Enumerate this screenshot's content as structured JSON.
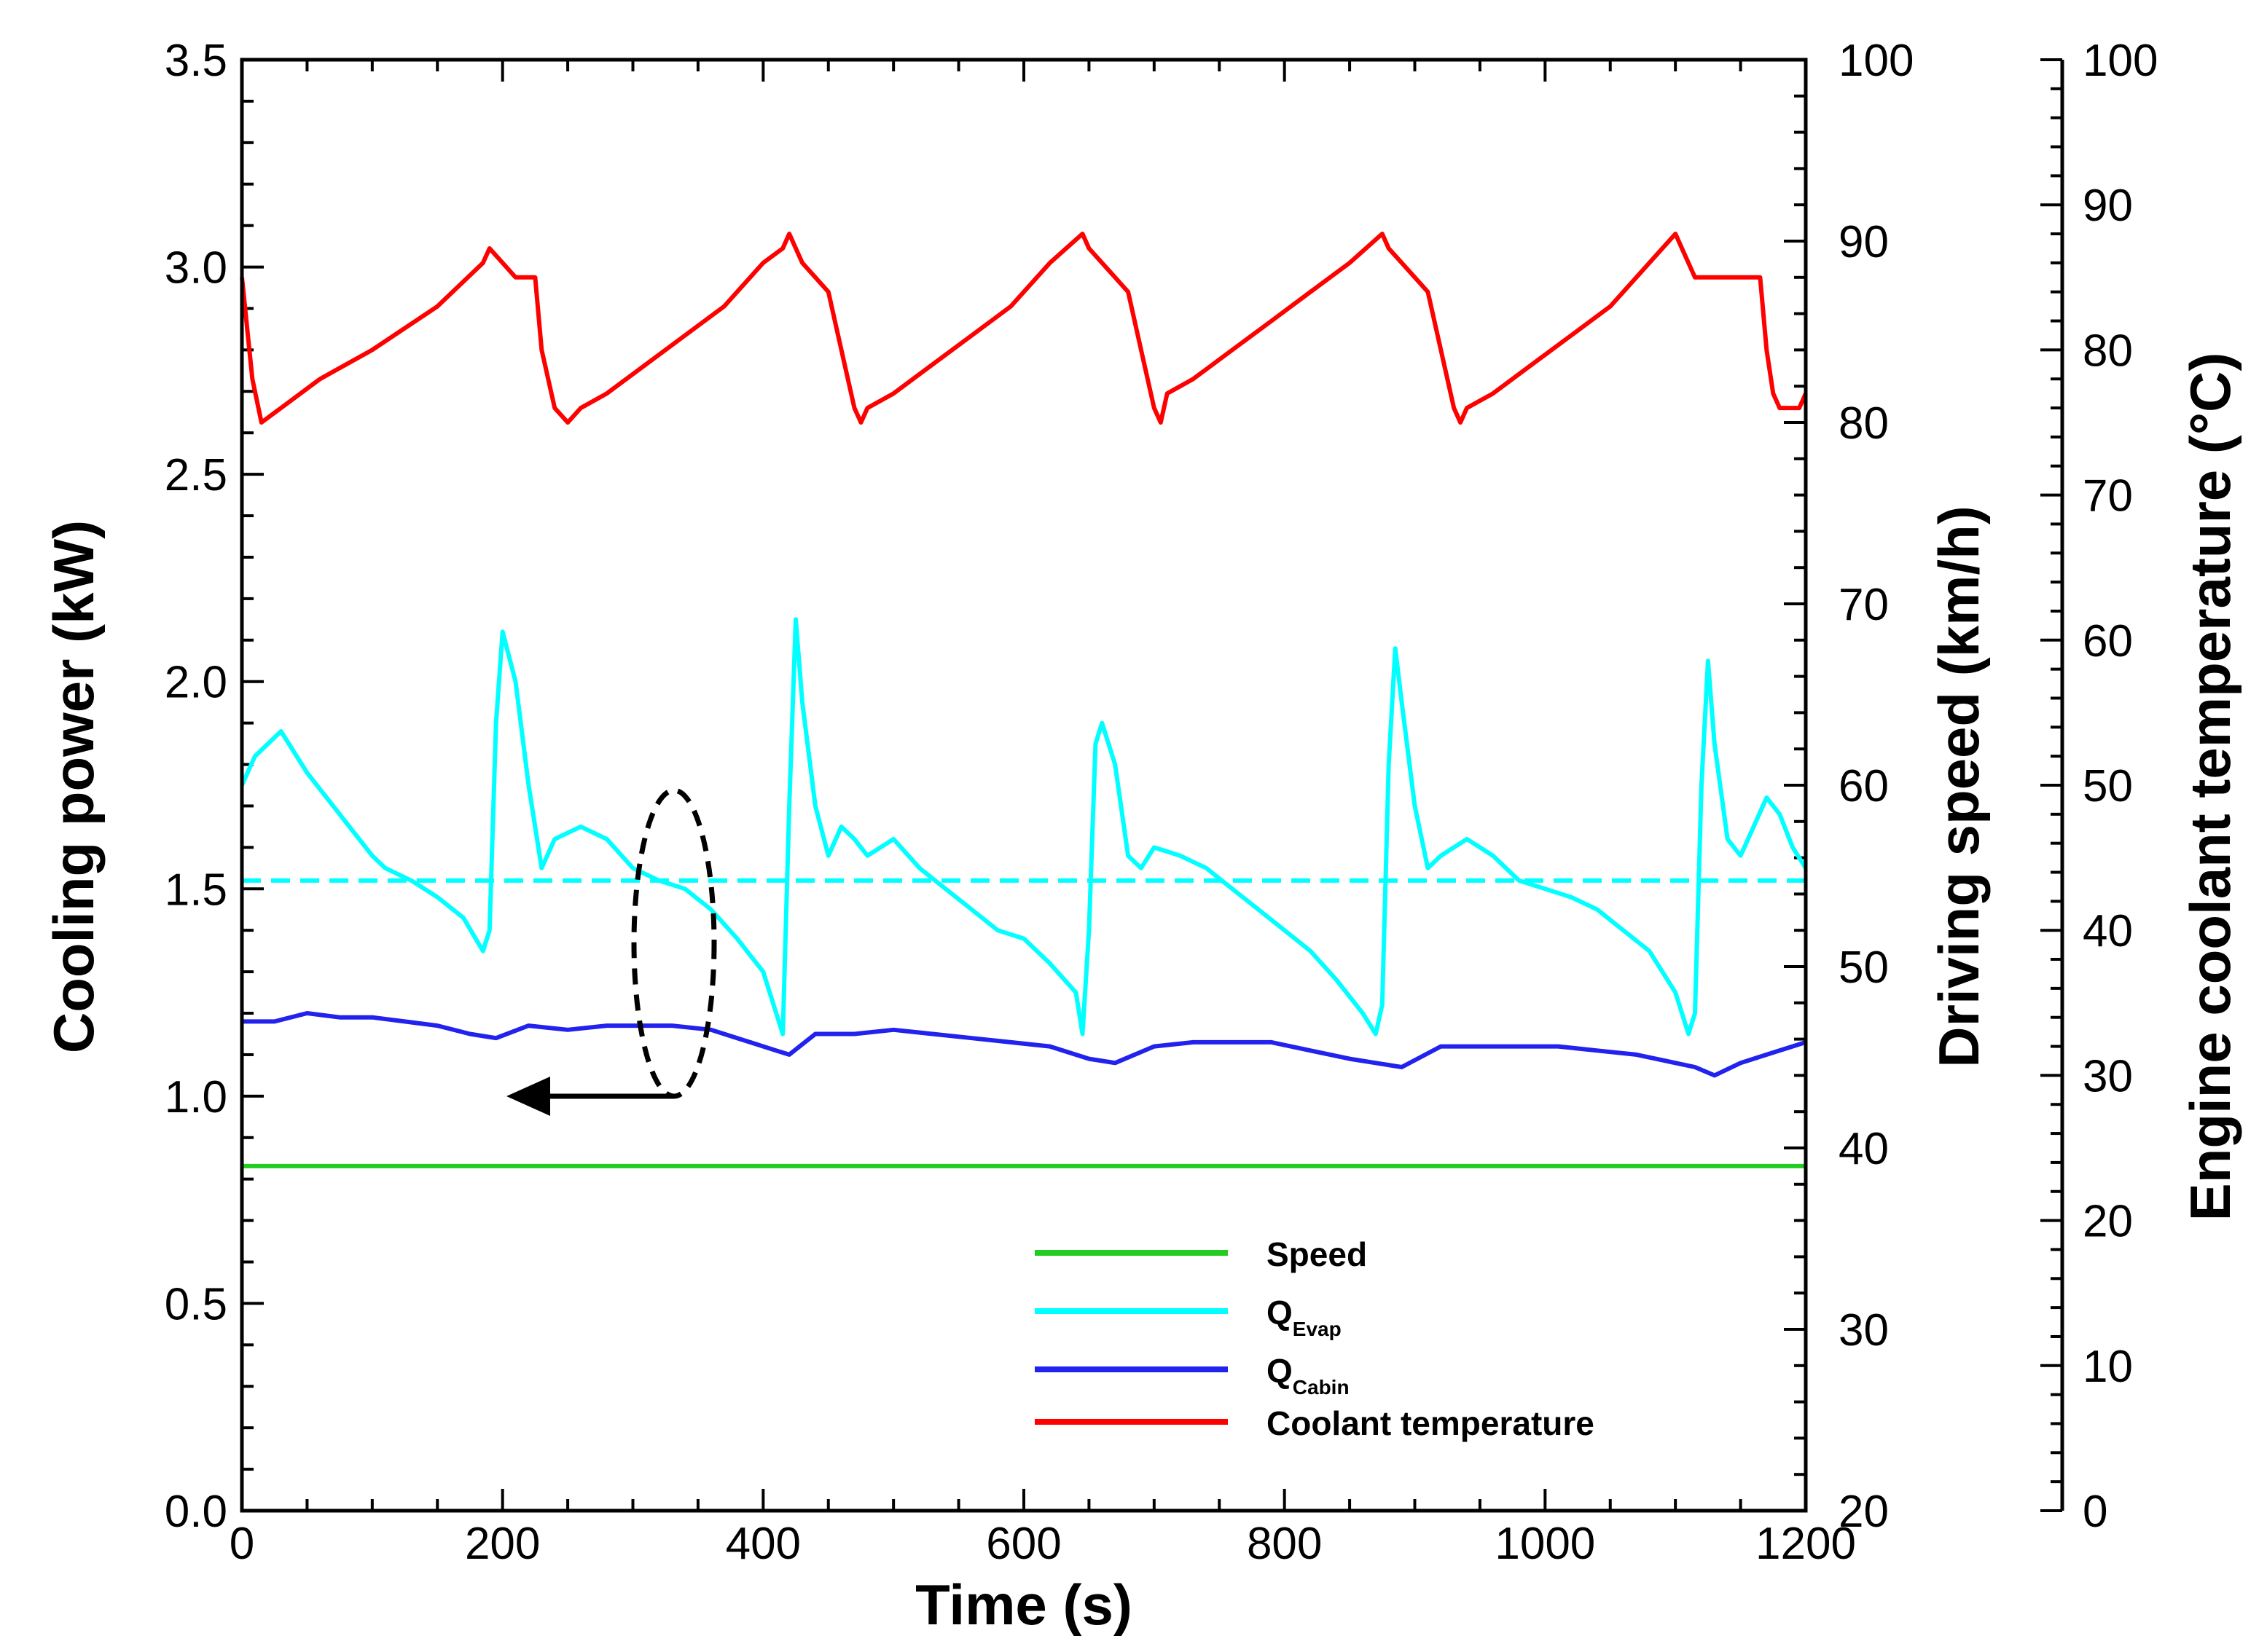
{
  "chart_data": {
    "type": "line",
    "xlabel": "Time (s)",
    "xlim": [
      0,
      1200
    ],
    "x_ticks": [
      "0",
      "200",
      "400",
      "600",
      "800",
      "1000",
      "1200"
    ],
    "y_left": {
      "label": "Cooling power (kW)",
      "ylim": [
        0,
        3.5
      ],
      "ticks": [
        "0.0",
        "0.5",
        "1.0",
        "1.5",
        "2.0",
        "2.5",
        "3.0",
        "3.5"
      ]
    },
    "y_right_speed": {
      "label": "Driving speed (km/h)",
      "ylim": [
        20,
        100
      ],
      "ticks": [
        "20",
        "30",
        "40",
        "50",
        "60",
        "70",
        "80",
        "90",
        "100"
      ]
    },
    "y_right_temp": {
      "label": "Engine coolant temperature (°C)",
      "ylim": [
        0,
        100
      ],
      "ticks": [
        "0",
        "10",
        "20",
        "30",
        "40",
        "50",
        "60",
        "70",
        "80",
        "90",
        "100"
      ]
    },
    "legend": [
      {
        "name": "Speed",
        "sub": "",
        "color": "#22cc22"
      },
      {
        "name": "Q",
        "sub": "Evap",
        "color": "#00ffff"
      },
      {
        "name": "Q",
        "sub": "Cabin",
        "color": "#2222ee"
      },
      {
        "name": "Coolant temperature",
        "sub": "",
        "color": "#ff0000"
      }
    ],
    "series": [
      {
        "name": "Speed",
        "axis": "speed",
        "color": "#22cc22",
        "x": [
          0,
          200,
          400,
          600,
          800,
          1000,
          1200
        ],
        "y": [
          39,
          39,
          39,
          39,
          39,
          39,
          39
        ]
      },
      {
        "name": "QEvap",
        "axis": "power",
        "color": "#00ffff",
        "x": [
          0,
          10,
          30,
          50,
          70,
          90,
          100,
          110,
          130,
          150,
          170,
          185,
          190,
          195,
          200,
          210,
          220,
          230,
          240,
          260,
          280,
          300,
          320,
          340,
          360,
          380,
          400,
          410,
          415,
          420,
          425,
          430,
          440,
          450,
          460,
          470,
          480,
          500,
          520,
          540,
          560,
          580,
          600,
          620,
          640,
          645,
          650,
          655,
          660,
          670,
          680,
          690,
          700,
          720,
          740,
          760,
          780,
          800,
          820,
          840,
          860,
          870,
          875,
          880,
          885,
          890,
          900,
          910,
          920,
          940,
          960,
          980,
          1000,
          1020,
          1040,
          1060,
          1080,
          1100,
          1110,
          1115,
          1120,
          1125,
          1130,
          1140,
          1150,
          1160,
          1170,
          1180,
          1190,
          1200
        ],
        "y": [
          1.75,
          1.82,
          1.88,
          1.78,
          1.7,
          1.62,
          1.58,
          1.55,
          1.52,
          1.48,
          1.43,
          1.35,
          1.4,
          1.9,
          2.12,
          2.0,
          1.75,
          1.55,
          1.62,
          1.65,
          1.62,
          1.55,
          1.52,
          1.5,
          1.45,
          1.38,
          1.3,
          1.2,
          1.15,
          1.7,
          2.15,
          1.95,
          1.7,
          1.58,
          1.65,
          1.62,
          1.58,
          1.62,
          1.55,
          1.5,
          1.45,
          1.4,
          1.38,
          1.32,
          1.25,
          1.15,
          1.4,
          1.85,
          1.9,
          1.8,
          1.58,
          1.55,
          1.6,
          1.58,
          1.55,
          1.5,
          1.45,
          1.4,
          1.35,
          1.28,
          1.2,
          1.15,
          1.22,
          1.8,
          2.08,
          1.95,
          1.7,
          1.55,
          1.58,
          1.62,
          1.58,
          1.52,
          1.5,
          1.48,
          1.45,
          1.4,
          1.35,
          1.25,
          1.15,
          1.2,
          1.75,
          2.05,
          1.85,
          1.62,
          1.58,
          1.65,
          1.72,
          1.68,
          1.6,
          1.55
        ]
      },
      {
        "name": "QEvap mean",
        "axis": "power",
        "color": "#00ffff",
        "dashed": true,
        "x": [
          0,
          1200
        ],
        "y": [
          1.52,
          1.52
        ]
      },
      {
        "name": "QCabin",
        "axis": "power",
        "color": "#2222ee",
        "x": [
          0,
          25,
          50,
          75,
          100,
          125,
          150,
          175,
          195,
          220,
          250,
          280,
          300,
          330,
          360,
          390,
          410,
          420,
          440,
          470,
          500,
          530,
          560,
          590,
          620,
          650,
          670,
          700,
          730,
          760,
          790,
          820,
          850,
          870,
          890,
          920,
          950,
          980,
          1010,
          1040,
          1070,
          1100,
          1115,
          1130,
          1150,
          1170,
          1200
        ],
        "y": [
          1.18,
          1.18,
          1.2,
          1.19,
          1.19,
          1.18,
          1.17,
          1.15,
          1.14,
          1.17,
          1.16,
          1.17,
          1.17,
          1.17,
          1.16,
          1.13,
          1.11,
          1.1,
          1.15,
          1.15,
          1.16,
          1.15,
          1.14,
          1.13,
          1.12,
          1.09,
          1.08,
          1.12,
          1.13,
          1.13,
          1.13,
          1.11,
          1.09,
          1.08,
          1.07,
          1.12,
          1.12,
          1.12,
          1.12,
          1.11,
          1.1,
          1.08,
          1.07,
          1.05,
          1.08,
          1.1,
          1.13
        ]
      },
      {
        "name": "Coolant temperature",
        "axis": "temp",
        "color": "#ff0000",
        "x": [
          0,
          8,
          15,
          30,
          60,
          100,
          150,
          185,
          190,
          200,
          210,
          225,
          230,
          240,
          250,
          260,
          280,
          310,
          340,
          370,
          400,
          415,
          420,
          430,
          440,
          450,
          460,
          470,
          475,
          480,
          500,
          530,
          560,
          590,
          620,
          645,
          650,
          660,
          670,
          680,
          690,
          700,
          705,
          710,
          730,
          760,
          790,
          820,
          850,
          875,
          880,
          890,
          900,
          910,
          920,
          930,
          935,
          940,
          960,
          990,
          1020,
          1050,
          1080,
          1100,
          1105,
          1115,
          1130,
          1150,
          1165,
          1170,
          1175,
          1180,
          1185,
          1195,
          1200
        ],
        "y": [
          85,
          78,
          75,
          76,
          78,
          80,
          83,
          86,
          87,
          86,
          85,
          85,
          80,
          76,
          75,
          76,
          77,
          79,
          81,
          83,
          86,
          87,
          88,
          86,
          85,
          84,
          80,
          76,
          75,
          76,
          77,
          79,
          81,
          83,
          86,
          88,
          87,
          86,
          85,
          84,
          80,
          76,
          75,
          77,
          78,
          80,
          82,
          84,
          86,
          88,
          87,
          86,
          85,
          84,
          80,
          76,
          75,
          76,
          77,
          79,
          81,
          83,
          86,
          88,
          87,
          85,
          85,
          85,
          85,
          80,
          77,
          76,
          76,
          76,
          77
        ]
      }
    ]
  }
}
